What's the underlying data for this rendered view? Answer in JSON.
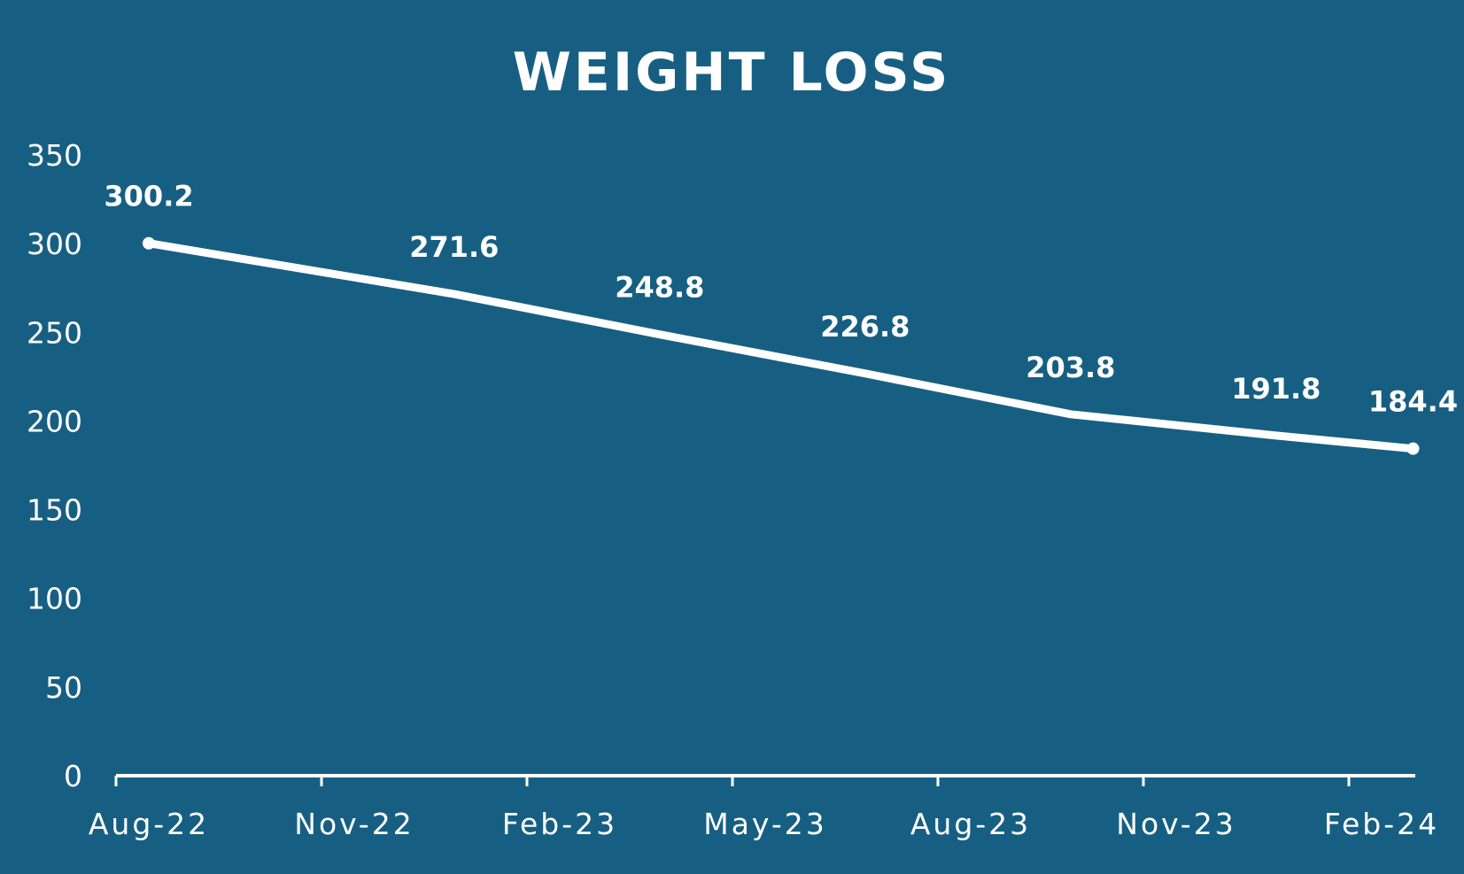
{
  "chart_data": {
    "type": "line",
    "title": "WEIGHT LOSS",
    "xlabel": "",
    "ylabel": "",
    "ylim": [
      0,
      350
    ],
    "yticks": [
      0,
      50,
      100,
      150,
      200,
      250,
      300,
      350
    ],
    "xlim": [
      "2022-08-01",
      "2024-02-01"
    ],
    "xticks": [
      "Aug-22",
      "Nov-22",
      "Feb-23",
      "May-23",
      "Aug-23",
      "Nov-23",
      "Feb-24"
    ],
    "grid": false,
    "legend": "none",
    "series": [
      {
        "x": [
          "2022-08-01",
          "2022-12-15",
          "2023-03-15",
          "2023-06-15",
          "2023-09-15",
          "2023-12-15",
          "2024-02-15"
        ],
        "values": [
          300.2,
          271.6,
          248.8,
          226.8,
          203.8,
          191.8,
          184.4
        ],
        "data_labels": [
          "300.2",
          "271.6",
          "248.8",
          "226.8",
          "203.8",
          "191.8",
          "184.4"
        ],
        "color": "#FFFFFF"
      }
    ],
    "background_color": "#175F82",
    "line_color": "#FFFFFF"
  }
}
